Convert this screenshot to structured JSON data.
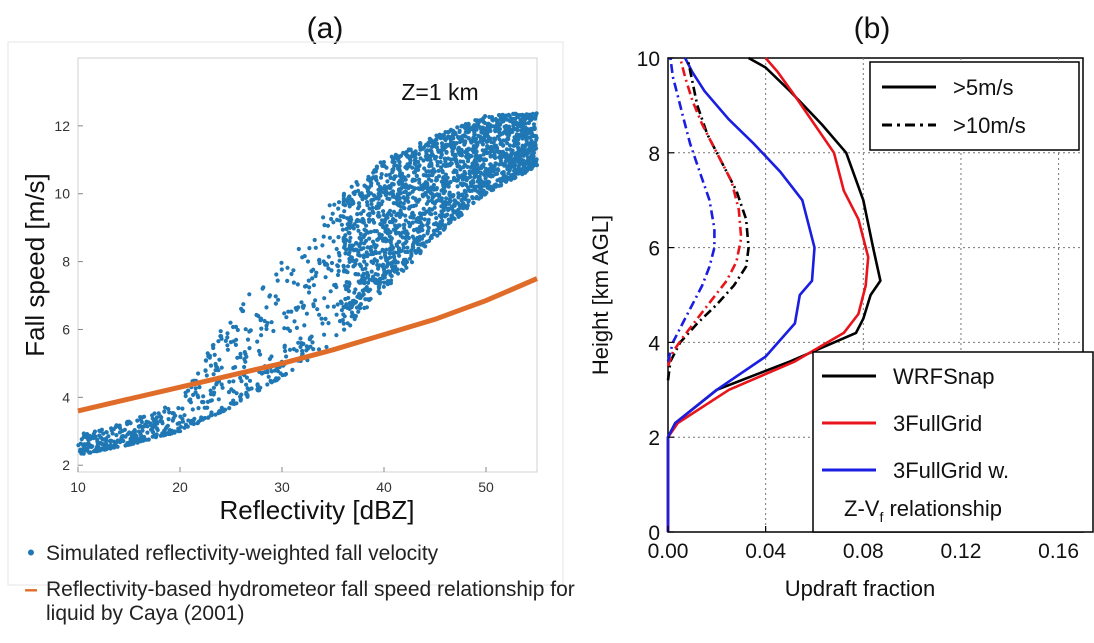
{
  "panel_labels": {
    "a": "(a)",
    "b": "(b)"
  },
  "chart_data": [
    {
      "type": "scatter",
      "xlabel": "Reflectivity [dBZ]",
      "ylabel": "Fall speed [m/s]",
      "annotation": "Z=1 km",
      "xlim": [
        10,
        55
      ],
      "ylim": [
        1.8,
        14
      ],
      "xticks": [
        10,
        20,
        30,
        40,
        50
      ],
      "yticks": [
        2,
        4,
        6,
        8,
        10,
        12
      ],
      "grid": false,
      "scatter_color": "#1f77b4",
      "line_color": "#e06c2a",
      "scatter_envelope": {
        "x": [
          10,
          15,
          20,
          25,
          30,
          35,
          40,
          45,
          50,
          55
        ],
        "lower": [
          2.3,
          2.6,
          3.0,
          3.7,
          4.6,
          5.6,
          7.1,
          8.7,
          10.0,
          10.8
        ],
        "upper": [
          2.9,
          3.3,
          3.9,
          6.5,
          8.0,
          9.8,
          11.0,
          11.7,
          12.3,
          12.4
        ]
      },
      "series": [
        {
          "type": "line",
          "x": [
            10,
            15,
            20,
            25,
            30,
            35,
            40,
            45,
            50,
            55
          ],
          "y": [
            3.6,
            3.95,
            4.3,
            4.65,
            5.0,
            5.4,
            5.85,
            6.3,
            6.85,
            7.5
          ]
        }
      ],
      "legend": [
        {
          "symbol": "•",
          "label": "Simulated reflectivity-weighted fall velocity"
        },
        {
          "symbol": "–",
          "label": "Reflectivity-based hydrometeor fall speed relationship for liquid by Caya (2001)"
        }
      ]
    },
    {
      "type": "line",
      "xlabel": "Updraft fraction",
      "ylabel": "Height [km AGL]",
      "xlim": [
        0,
        0.17
      ],
      "ylim": [
        0,
        10
      ],
      "xticks": [
        "0.00",
        "0.04",
        "0.08",
        "0.12",
        "0.16"
      ],
      "yticks": [
        "0",
        "2",
        "4",
        "6",
        "8",
        "10"
      ],
      "grid": true,
      "style_legend": [
        {
          "label": ">5m/s",
          "dash": "solid"
        },
        {
          "label": ">10m/s",
          "dash": "dashdot"
        }
      ],
      "series_legend": [
        {
          "label": "WRFSnap",
          "color": "#000000"
        },
        {
          "label": "3FullGrid",
          "color": "#e8141b"
        },
        {
          "label": "3FullGrid w.",
          "label2": "Z-V",
          "label2_sub": "f",
          "label2_rest": " relationship",
          "color": "#1a1ee0"
        }
      ],
      "series": [
        {
          "name": "WRFSnap",
          "threshold": ">5m/s",
          "color": "#000000",
          "dash": "solid",
          "x": [
            0.0,
            0.0,
            0.003,
            0.02,
            0.05,
            0.077,
            0.08,
            0.083,
            0.087,
            0.084,
            0.08,
            0.073,
            0.063,
            0.05,
            0.04,
            0.033
          ],
          "y": [
            0,
            2.0,
            2.3,
            3.0,
            3.6,
            4.2,
            4.5,
            5.0,
            5.3,
            6.0,
            7.0,
            8.0,
            8.6,
            9.3,
            9.8,
            10.0
          ]
        },
        {
          "name": "3FullGrid",
          "threshold": ">5m/s",
          "color": "#e8141b",
          "dash": "solid",
          "x": [
            0.0,
            0.0,
            0.004,
            0.025,
            0.052,
            0.072,
            0.078,
            0.081,
            0.082,
            0.078,
            0.072,
            0.068,
            0.06,
            0.052,
            0.045,
            0.04
          ],
          "y": [
            0,
            2.0,
            2.3,
            3.0,
            3.6,
            4.2,
            4.6,
            5.2,
            5.8,
            6.6,
            7.2,
            8.0,
            8.6,
            9.2,
            9.7,
            10.0
          ]
        },
        {
          "name": "3FullGrid w. Z-Vf relationship",
          "threshold": ">5m/s",
          "color": "#1a1ee0",
          "dash": "solid",
          "x": [
            0.0,
            0.0,
            0.003,
            0.02,
            0.04,
            0.052,
            0.054,
            0.059,
            0.06,
            0.055,
            0.046,
            0.035,
            0.025,
            0.015,
            0.01,
            0.007
          ],
          "y": [
            0,
            2.0,
            2.3,
            3.0,
            3.7,
            4.4,
            5.0,
            5.3,
            6.0,
            7.0,
            7.6,
            8.2,
            8.7,
            9.3,
            9.7,
            10.0
          ]
        },
        {
          "name": "WRFSnap",
          "threshold": ">10m/s",
          "color": "#000000",
          "dash": "dashdot",
          "x": [
            0.0,
            0.001,
            0.005,
            0.012,
            0.02,
            0.027,
            0.032,
            0.033,
            0.032,
            0.028,
            0.022,
            0.016,
            0.012,
            0.01,
            0.008
          ],
          "y": [
            3.2,
            3.6,
            4.0,
            4.4,
            4.8,
            5.2,
            5.6,
            6.0,
            6.6,
            7.2,
            7.8,
            8.4,
            9.0,
            9.5,
            10.0
          ]
        },
        {
          "name": "3FullGrid",
          "threshold": ">10m/s",
          "color": "#e8141b",
          "dash": "dashdot",
          "x": [
            0.0,
            0.002,
            0.006,
            0.012,
            0.018,
            0.024,
            0.028,
            0.03,
            0.029,
            0.026,
            0.02,
            0.014,
            0.01,
            0.007,
            0.005
          ],
          "y": [
            3.5,
            3.8,
            4.1,
            4.5,
            4.9,
            5.3,
            5.7,
            6.2,
            6.8,
            7.4,
            8.0,
            8.6,
            9.1,
            9.6,
            10.0
          ]
        },
        {
          "name": "3FullGrid w. Z-Vf relationship",
          "threshold": ">10m/s",
          "color": "#1a1ee0",
          "dash": "dashdot",
          "x": [
            0.0,
            0.002,
            0.006,
            0.01,
            0.014,
            0.017,
            0.019,
            0.019,
            0.017,
            0.013,
            0.009,
            0.006,
            0.004,
            0.002,
            0.001
          ],
          "y": [
            3.6,
            4.0,
            4.4,
            4.8,
            5.2,
            5.6,
            6.0,
            6.4,
            7.0,
            7.6,
            8.2,
            8.8,
            9.2,
            9.6,
            10.0
          ]
        }
      ]
    }
  ]
}
